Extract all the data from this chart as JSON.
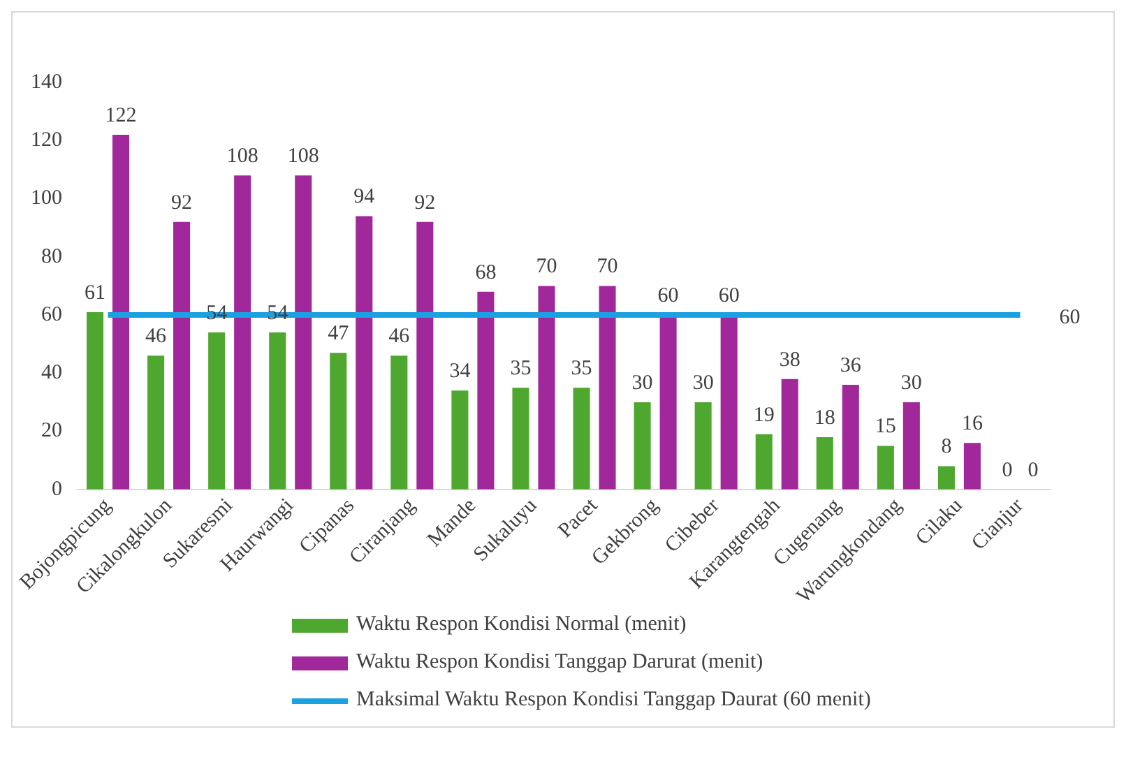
{
  "chart_data": {
    "type": "bar",
    "categories": [
      "Bojongpicung",
      "Cikalongkulon",
      "Sukaresmi",
      "Haurwangi",
      "Cipanas",
      "Ciranjang",
      "Mande",
      "Sukaluyu",
      "Pacet",
      "Gekbrong",
      "Cibeber",
      "Karangtengah",
      "Cugenang",
      "Warungkondang",
      "Cilaku",
      "Cianjur"
    ],
    "series": [
      {
        "name": "Waktu Respon Kondisi Normal (menit)",
        "color": "#4ea72e",
        "values": [
          61,
          46,
          54,
          54,
          47,
          46,
          34,
          35,
          35,
          30,
          30,
          19,
          18,
          15,
          8,
          0
        ],
        "value_labels": [
          "61",
          "46",
          "54",
          "54",
          "47",
          "46",
          "34",
          "35",
          "35",
          "30",
          "30",
          "19",
          "18",
          "15",
          "8",
          "0"
        ]
      },
      {
        "name": "Waktu Respon Kondisi Tanggap Darurat (menit)",
        "color": "#a0289a",
        "values": [
          122,
          92,
          108,
          108,
          94,
          92,
          68,
          70,
          70,
          60,
          60,
          38,
          36,
          30,
          16,
          0
        ],
        "value_labels": [
          "122",
          "92",
          "108",
          "108",
          "94",
          "92",
          "68",
          "70",
          "70",
          "60",
          "60",
          "38",
          "36",
          "30",
          "16",
          "0"
        ]
      },
      {
        "name": "Maksimal Waktu Respon Kondisi Tanggap Daurat (60 menit)",
        "type": "line",
        "color": "#1ba1e2",
        "values": [
          60,
          60,
          60,
          60,
          60,
          60,
          60,
          60,
          60,
          60,
          60,
          60,
          60,
          60,
          60,
          60
        ],
        "value_labels": [
          null,
          null,
          null,
          null,
          null,
          null,
          null,
          null,
          null,
          null,
          null,
          null,
          null,
          null,
          null,
          "60"
        ]
      }
    ],
    "ylim": [
      0,
      140
    ],
    "yticks": [
      0,
      20,
      40,
      60,
      80,
      100,
      120,
      140
    ],
    "grid": false,
    "legend": "bottom",
    "marker": "none"
  }
}
